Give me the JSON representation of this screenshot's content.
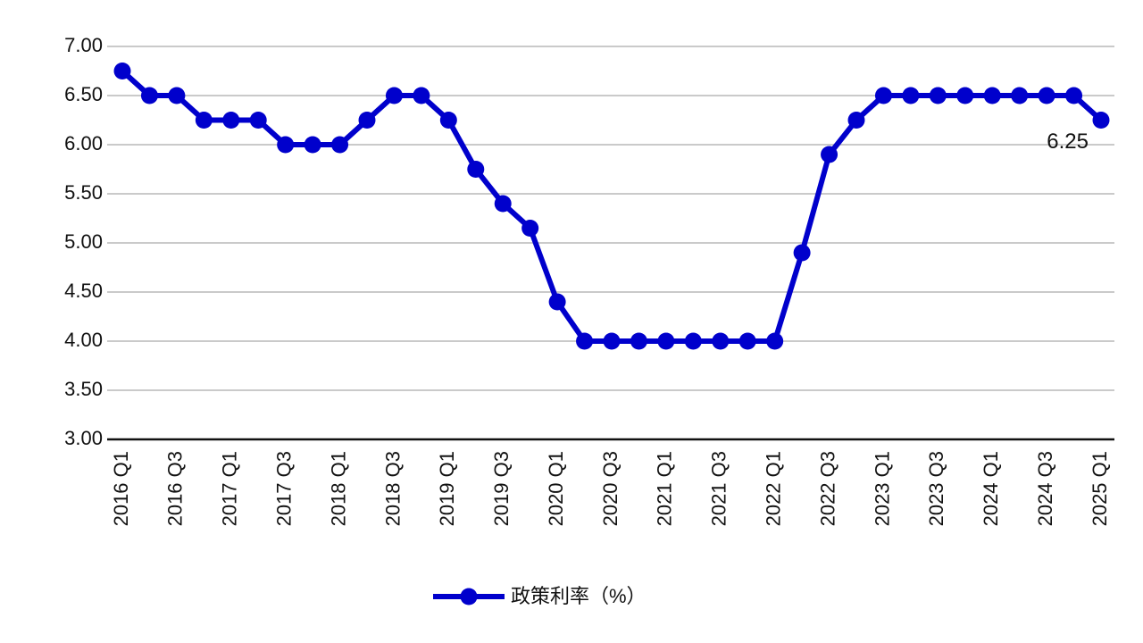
{
  "chart_data": {
    "type": "line",
    "categories": [
      "2016 Q1",
      null,
      "2016 Q3",
      null,
      "2017 Q1",
      null,
      "2017 Q3",
      null,
      "2018 Q1",
      null,
      "2018 Q3",
      null,
      "2019 Q1",
      null,
      "2019 Q3",
      null,
      "2020 Q1",
      null,
      "2020 Q3",
      null,
      "2021 Q1",
      null,
      "2021 Q3",
      null,
      "2022 Q1",
      null,
      "2022 Q3",
      null,
      "2023 Q1",
      null,
      "2023 Q3",
      null,
      "2024 Q1",
      null,
      "2024 Q3",
      null,
      "2025 Q1"
    ],
    "series": [
      {
        "name": "政策利率（%）",
        "color": "#0000cc",
        "values": [
          6.75,
          6.5,
          6.5,
          6.25,
          6.25,
          6.25,
          6.0,
          6.0,
          6.0,
          6.25,
          6.5,
          6.5,
          6.25,
          5.75,
          5.4,
          5.15,
          4.4,
          4.0,
          4.0,
          4.0,
          4.0,
          4.0,
          4.0,
          4.0,
          4.0,
          4.9,
          5.9,
          6.25,
          6.5,
          6.5,
          6.5,
          6.5,
          6.5,
          6.5,
          6.5,
          6.5,
          6.25
        ],
        "value_labels": [
          null,
          null,
          null,
          null,
          null,
          null,
          null,
          null,
          null,
          null,
          null,
          null,
          null,
          null,
          null,
          null,
          null,
          null,
          null,
          null,
          null,
          null,
          null,
          null,
          null,
          null,
          null,
          null,
          null,
          null,
          null,
          null,
          null,
          null,
          null,
          null,
          "6.25"
        ]
      }
    ],
    "ylim": [
      3,
      7
    ],
    "yticks": [
      {
        "value": 3,
        "label": "3.00"
      },
      {
        "value": 3.5,
        "label": "3.50"
      },
      {
        "value": 4,
        "label": "4.00"
      },
      {
        "value": 4.5,
        "label": "4.50"
      },
      {
        "value": 5,
        "label": "5.00"
      },
      {
        "value": 5.5,
        "label": "5.50"
      },
      {
        "value": 6,
        "label": "6.00"
      },
      {
        "value": 6.5,
        "label": "6.50"
      },
      {
        "value": 7,
        "label": "7.00"
      }
    ],
    "grid": true,
    "legend": "bottom"
  }
}
